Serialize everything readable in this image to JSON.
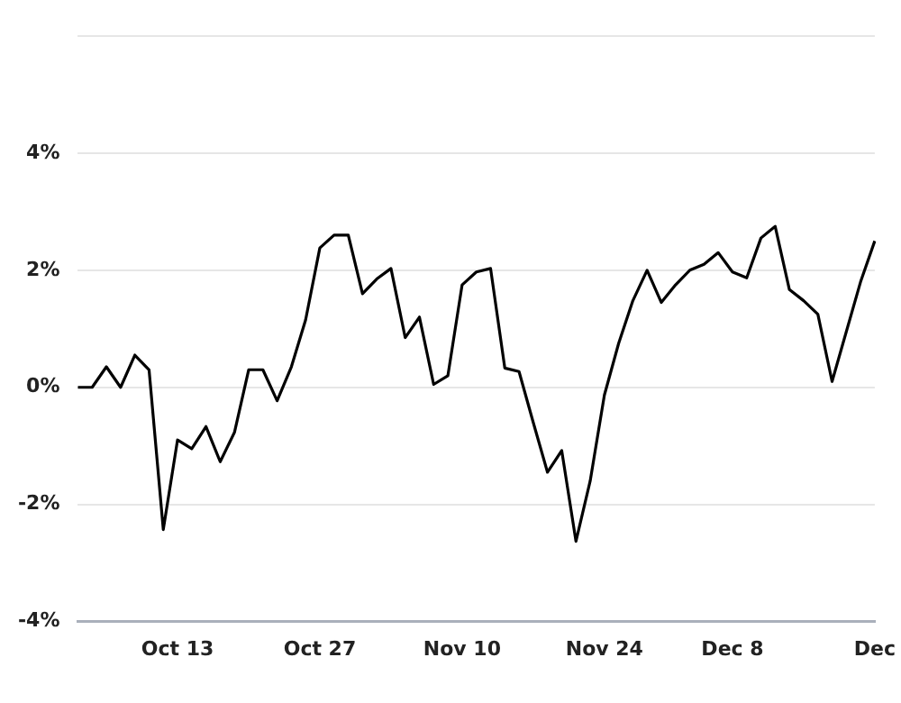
{
  "chart_data": {
    "type": "line",
    "categories": [
      null,
      null,
      null,
      null,
      null,
      null,
      null,
      "Oct 13",
      null,
      null,
      null,
      null,
      null,
      null,
      null,
      null,
      null,
      "Oct 27",
      null,
      null,
      null,
      null,
      null,
      null,
      null,
      null,
      null,
      "Nov 10",
      null,
      null,
      null,
      null,
      null,
      null,
      null,
      null,
      null,
      "Nov 24",
      null,
      null,
      null,
      null,
      null,
      null,
      null,
      null,
      "Dec 8",
      null,
      null,
      null,
      null,
      null,
      null,
      null,
      null,
      null,
      "Dec"
    ],
    "series": [
      {
        "color": "#000000",
        "values": [
          0,
          0,
          0.35,
          0,
          0.55,
          0.3,
          -2.43,
          -0.9,
          -1.05,
          -0.67,
          -1.27,
          -0.77,
          0.3,
          0.3,
          -0.23,
          0.35,
          1.15,
          2.38,
          2.6,
          2.6,
          1.6,
          1.85,
          2.03,
          0.85,
          1.2,
          0.05,
          0.2,
          1.75,
          1.97,
          2.03,
          0.33,
          0.27,
          -0.6,
          -1.45,
          -1.08,
          -2.63,
          -1.6,
          -0.13,
          0.75,
          1.48,
          2.0,
          1.45,
          1.75,
          2.0,
          2.1,
          2.3,
          1.97,
          1.87,
          2.55,
          2.75,
          1.67,
          1.48,
          1.25,
          0.1,
          0.95,
          1.8,
          2.5
        ]
      }
    ],
    "ylim": [
      -4,
      6
    ],
    "yticks": [
      {
        "value": -4,
        "label": "-4%"
      },
      {
        "value": -2,
        "label": "-2%"
      },
      {
        "value": 0,
        "label": "0%"
      },
      {
        "value": 2,
        "label": "2%"
      },
      {
        "value": 4,
        "label": "4%"
      },
      {
        "value": 6,
        "label": null
      }
    ],
    "grid": "y",
    "legend": false,
    "marker": "none",
    "line_style": "solid"
  }
}
